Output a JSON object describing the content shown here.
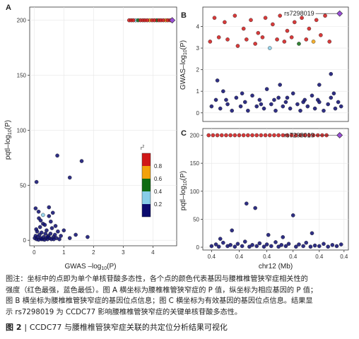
{
  "chart_data": [
    {
      "type": "scatter",
      "panel": "A",
      "xlabel": "GWAS–log10(P)",
      "ylabel": "pqtl–log10(P)",
      "x_ticks": [
        0,
        1,
        2,
        3,
        4
      ],
      "y_ticks": [
        0,
        50,
        100,
        150,
        200
      ],
      "xlim": [
        -0.15,
        4.8
      ],
      "ylim": [
        -5,
        212
      ],
      "legend": {
        "title": "r2",
        "ticks": [
          "0.8",
          "0.6",
          "0.4",
          "0.2"
        ],
        "colors": [
          "#0b0b6e",
          "#87cde8",
          "#0f6b12",
          "#f2a20c",
          "#d01818"
        ]
      },
      "points": [
        {
          "x": 0.02,
          "y": 2,
          "c": 0
        },
        {
          "x": 0.05,
          "y": 4,
          "c": 0
        },
        {
          "x": 0.08,
          "y": 1,
          "c": 0
        },
        {
          "x": 0.1,
          "y": 8,
          "c": 0
        },
        {
          "x": 0.12,
          "y": 3,
          "c": 0
        },
        {
          "x": 0.15,
          "y": 0.5,
          "c": 0
        },
        {
          "x": 0.18,
          "y": 5,
          "c": 0
        },
        {
          "x": 0.2,
          "y": 12,
          "c": 0
        },
        {
          "x": 0.22,
          "y": 2,
          "c": 0
        },
        {
          "x": 0.25,
          "y": 7,
          "c": 0
        },
        {
          "x": 0.28,
          "y": 1,
          "c": 0
        },
        {
          "x": 0.3,
          "y": 15,
          "c": 0
        },
        {
          "x": 0.32,
          "y": 3,
          "c": 0
        },
        {
          "x": 0.35,
          "y": 0.5,
          "c": 0
        },
        {
          "x": 0.38,
          "y": 6,
          "c": 0
        },
        {
          "x": 0.4,
          "y": 2,
          "c": 0
        },
        {
          "x": 0.42,
          "y": 9,
          "c": 0
        },
        {
          "x": 0.45,
          "y": 1,
          "c": 0
        },
        {
          "x": 0.48,
          "y": 4,
          "c": 0
        },
        {
          "x": 0.5,
          "y": 22,
          "c": 0
        },
        {
          "x": 0.52,
          "y": 2,
          "c": 0
        },
        {
          "x": 0.55,
          "y": 6,
          "c": 0
        },
        {
          "x": 0.58,
          "y": 1,
          "c": 0
        },
        {
          "x": 0.6,
          "y": 11,
          "c": 0
        },
        {
          "x": 0.65,
          "y": 3,
          "c": 0
        },
        {
          "x": 0.7,
          "y": 5,
          "c": 0
        },
        {
          "x": 0.75,
          "y": 2,
          "c": 0
        },
        {
          "x": 0.8,
          "y": 8,
          "c": 0
        },
        {
          "x": 0.85,
          "y": 1,
          "c": 0
        },
        {
          "x": 0.9,
          "y": 4,
          "c": 0
        },
        {
          "x": 1.0,
          "y": 9,
          "c": 0
        },
        {
          "x": 1.2,
          "y": 2,
          "c": 0
        },
        {
          "x": 1.4,
          "y": 5,
          "c": 0
        },
        {
          "x": 1.8,
          "y": 3,
          "c": 0
        },
        {
          "x": 0.07,
          "y": 10,
          "c": 0
        },
        {
          "x": 0.16,
          "y": 20,
          "c": 0
        },
        {
          "x": 0.24,
          "y": 1,
          "c": 0
        },
        {
          "x": 0.36,
          "y": 14,
          "c": 0
        },
        {
          "x": 0.46,
          "y": 3,
          "c": 0
        },
        {
          "x": 0.56,
          "y": 17,
          "c": 0
        },
        {
          "x": 0.66,
          "y": 1,
          "c": 0
        },
        {
          "x": 0.72,
          "y": 13,
          "c": 0
        },
        {
          "x": 0.05,
          "y": 29,
          "c": 0
        },
        {
          "x": 0.08,
          "y": 53,
          "c": 0
        },
        {
          "x": 0.15,
          "y": 26,
          "c": 0
        },
        {
          "x": 0.22,
          "y": 18,
          "c": 0
        },
        {
          "x": 0.5,
          "y": 30,
          "c": 0
        },
        {
          "x": 0.63,
          "y": 25,
          "c": 0
        },
        {
          "x": 0.78,
          "y": 77,
          "c": 0
        },
        {
          "x": 1.2,
          "y": 57,
          "c": 0
        },
        {
          "x": 1.6,
          "y": 72,
          "c": 0
        },
        {
          "x": 0.3,
          "y": 23,
          "c": 1
        },
        {
          "x": 3.2,
          "y": 200,
          "c": 4
        },
        {
          "x": 3.27,
          "y": 200,
          "c": 4
        },
        {
          "x": 3.34,
          "y": 200,
          "c": 4
        },
        {
          "x": 3.42,
          "y": 200,
          "c": 1
        },
        {
          "x": 3.5,
          "y": 200,
          "c": 2
        },
        {
          "x": 3.58,
          "y": 200,
          "c": 4
        },
        {
          "x": 3.66,
          "y": 200,
          "c": 4
        },
        {
          "x": 3.73,
          "y": 200,
          "c": 4
        },
        {
          "x": 3.81,
          "y": 200,
          "c": 4
        },
        {
          "x": 3.89,
          "y": 200,
          "c": 3
        },
        {
          "x": 3.97,
          "y": 200,
          "c": 4
        },
        {
          "x": 4.05,
          "y": 200,
          "c": 4
        },
        {
          "x": 4.13,
          "y": 200,
          "c": 2
        },
        {
          "x": 4.2,
          "y": 200,
          "c": 4
        },
        {
          "x": 4.27,
          "y": 200,
          "c": 4
        },
        {
          "x": 4.35,
          "y": 200,
          "c": 4
        },
        {
          "x": 4.43,
          "y": 200,
          "c": 3
        },
        {
          "x": 4.5,
          "y": 200,
          "c": 4
        },
        {
          "x": 4.58,
          "y": 200,
          "c": 4
        }
      ],
      "lead": {
        "x": 4.65,
        "y": 200
      }
    },
    {
      "type": "scatter",
      "panel": "B",
      "ylabel": "GWAS–log10(P)",
      "y_ticks": [
        0,
        1,
        2,
        3,
        4
      ],
      "xlim": [
        0,
        1
      ],
      "ylim": [
        -0.4,
        4.9
      ],
      "lead_label": "rs7298019",
      "lead": {
        "x": 0.94,
        "y": 4.6
      },
      "points": [
        {
          "x": 0.08,
          "y": 4.4,
          "c": 4
        },
        {
          "x": 0.15,
          "y": 4.2,
          "c": 4
        },
        {
          "x": 0.22,
          "y": 4.5,
          "c": 4
        },
        {
          "x": 0.28,
          "y": 3.9,
          "c": 4
        },
        {
          "x": 0.33,
          "y": 4.3,
          "c": 4
        },
        {
          "x": 0.38,
          "y": 3.7,
          "c": 4
        },
        {
          "x": 0.43,
          "y": 4.4,
          "c": 4
        },
        {
          "x": 0.48,
          "y": 4.1,
          "c": 4
        },
        {
          "x": 0.53,
          "y": 4.5,
          "c": 4
        },
        {
          "x": 0.58,
          "y": 3.8,
          "c": 4
        },
        {
          "x": 0.63,
          "y": 4.2,
          "c": 4
        },
        {
          "x": 0.68,
          "y": 4.4,
          "c": 4
        },
        {
          "x": 0.73,
          "y": 3.9,
          "c": 4
        },
        {
          "x": 0.78,
          "y": 4.3,
          "c": 4
        },
        {
          "x": 0.84,
          "y": 4.5,
          "c": 4
        },
        {
          "x": 0.05,
          "y": 3.3,
          "c": 4
        },
        {
          "x": 0.11,
          "y": 3.5,
          "c": 4
        },
        {
          "x": 0.17,
          "y": 3.4,
          "c": 4
        },
        {
          "x": 0.24,
          "y": 3.1,
          "c": 4
        },
        {
          "x": 0.3,
          "y": 3.4,
          "c": 4
        },
        {
          "x": 0.36,
          "y": 3.2,
          "c": 4
        },
        {
          "x": 0.41,
          "y": 3.5,
          "c": 4
        },
        {
          "x": 0.46,
          "y": 3.0,
          "c": 1
        },
        {
          "x": 0.51,
          "y": 3.4,
          "c": 4
        },
        {
          "x": 0.56,
          "y": 3.3,
          "c": 4
        },
        {
          "x": 0.61,
          "y": 3.5,
          "c": 4
        },
        {
          "x": 0.66,
          "y": 3.2,
          "c": 2
        },
        {
          "x": 0.71,
          "y": 3.4,
          "c": 4
        },
        {
          "x": 0.76,
          "y": 3.3,
          "c": 3
        },
        {
          "x": 0.81,
          "y": 3.6,
          "c": 4
        },
        {
          "x": 0.87,
          "y": 3.3,
          "c": 4
        },
        {
          "x": 0.06,
          "y": 0.3,
          "c": 0
        },
        {
          "x": 0.09,
          "y": 0.6,
          "c": 0
        },
        {
          "x": 0.12,
          "y": 0.2,
          "c": 0
        },
        {
          "x": 0.14,
          "y": 1.0,
          "c": 0
        },
        {
          "x": 0.17,
          "y": 0.4,
          "c": 0
        },
        {
          "x": 0.2,
          "y": 0.1,
          "c": 0
        },
        {
          "x": 0.23,
          "y": 0.7,
          "c": 0
        },
        {
          "x": 0.26,
          "y": 0.3,
          "c": 0
        },
        {
          "x": 0.29,
          "y": 0.5,
          "c": 0
        },
        {
          "x": 0.31,
          "y": 0.1,
          "c": 0
        },
        {
          "x": 0.34,
          "y": 0.8,
          "c": 0
        },
        {
          "x": 0.37,
          "y": 0.3,
          "c": 0
        },
        {
          "x": 0.39,
          "y": 0.6,
          "c": 0
        },
        {
          "x": 0.42,
          "y": 0.2,
          "c": 0
        },
        {
          "x": 0.44,
          "y": 1.1,
          "c": 0
        },
        {
          "x": 0.47,
          "y": 0.4,
          "c": 0
        },
        {
          "x": 0.5,
          "y": 0.1,
          "c": 0
        },
        {
          "x": 0.52,
          "y": 0.7,
          "c": 0
        },
        {
          "x": 0.55,
          "y": 0.3,
          "c": 0
        },
        {
          "x": 0.57,
          "y": 0.5,
          "c": 0
        },
        {
          "x": 0.6,
          "y": 0.2,
          "c": 0
        },
        {
          "x": 0.62,
          "y": 0.9,
          "c": 0
        },
        {
          "x": 0.65,
          "y": 0.4,
          "c": 0
        },
        {
          "x": 0.67,
          "y": 0.1,
          "c": 0
        },
        {
          "x": 0.7,
          "y": 0.6,
          "c": 0
        },
        {
          "x": 0.72,
          "y": 0.3,
          "c": 0
        },
        {
          "x": 0.75,
          "y": 0.8,
          "c": 0
        },
        {
          "x": 0.77,
          "y": 0.2,
          "c": 0
        },
        {
          "x": 0.8,
          "y": 0.5,
          "c": 0
        },
        {
          "x": 0.83,
          "y": 0.1,
          "c": 0
        },
        {
          "x": 0.86,
          "y": 0.4,
          "c": 0
        },
        {
          "x": 0.88,
          "y": 0.7,
          "c": 0
        },
        {
          "x": 0.91,
          "y": 0.2,
          "c": 0
        },
        {
          "x": 0.93,
          "y": 0.5,
          "c": 0
        },
        {
          "x": 0.95,
          "y": 0.3,
          "c": 0
        },
        {
          "x": 0.16,
          "y": 0.6,
          "c": 0
        },
        {
          "x": 0.27,
          "y": 0.9,
          "c": 0
        },
        {
          "x": 0.4,
          "y": 0.4,
          "c": 0
        },
        {
          "x": 0.49,
          "y": 0.6,
          "c": 0
        },
        {
          "x": 0.58,
          "y": 0.7,
          "c": 0
        },
        {
          "x": 0.69,
          "y": 0.5,
          "c": 0
        },
        {
          "x": 0.79,
          "y": 0.6,
          "c": 0
        },
        {
          "x": 0.9,
          "y": 0.9,
          "c": 0
        },
        {
          "x": 0.1,
          "y": 1.5,
          "c": 0
        },
        {
          "x": 0.53,
          "y": 1.3,
          "c": 0
        },
        {
          "x": 0.88,
          "y": 1.8,
          "c": 0
        },
        {
          "x": 0.8,
          "y": 1.3,
          "c": 0
        }
      ]
    },
    {
      "type": "scatter",
      "panel": "C",
      "xlabel": "chr12 (Mb)",
      "ylabel": "pqtl–log10(P)",
      "x_ticks": [
        "0.4",
        "0.4",
        "0.4",
        "0.4",
        "0.4",
        "0.4"
      ],
      "y_ticks": [
        0,
        50,
        100,
        150,
        200
      ],
      "xlim": [
        0,
        1
      ],
      "ylim": [
        -5,
        212
      ],
      "lead_label": "rs7298019",
      "lead": {
        "x": 0.94,
        "y": 200
      },
      "points": [
        {
          "x": 0.04,
          "y": 200,
          "c": 4
        },
        {
          "x": 0.07,
          "y": 200,
          "c": 4
        },
        {
          "x": 0.1,
          "y": 200,
          "c": 4
        },
        {
          "x": 0.13,
          "y": 200,
          "c": 4
        },
        {
          "x": 0.16,
          "y": 200,
          "c": 4
        },
        {
          "x": 0.19,
          "y": 200,
          "c": 4
        },
        {
          "x": 0.22,
          "y": 200,
          "c": 4
        },
        {
          "x": 0.25,
          "y": 200,
          "c": 4
        },
        {
          "x": 0.28,
          "y": 200,
          "c": 4
        },
        {
          "x": 0.31,
          "y": 200,
          "c": 4
        },
        {
          "x": 0.34,
          "y": 200,
          "c": 4
        },
        {
          "x": 0.37,
          "y": 200,
          "c": 4
        },
        {
          "x": 0.4,
          "y": 200,
          "c": 4
        },
        {
          "x": 0.43,
          "y": 200,
          "c": 4
        },
        {
          "x": 0.46,
          "y": 200,
          "c": 4
        },
        {
          "x": 0.49,
          "y": 200,
          "c": 4
        },
        {
          "x": 0.52,
          "y": 200,
          "c": 4
        },
        {
          "x": 0.55,
          "y": 200,
          "c": 4
        },
        {
          "x": 0.58,
          "y": 200,
          "c": 4
        },
        {
          "x": 0.61,
          "y": 200,
          "c": 4
        },
        {
          "x": 0.64,
          "y": 200,
          "c": 4
        },
        {
          "x": 0.67,
          "y": 200,
          "c": 4
        },
        {
          "x": 0.7,
          "y": 200,
          "c": 4
        },
        {
          "x": 0.73,
          "y": 200,
          "c": 4
        },
        {
          "x": 0.76,
          "y": 200,
          "c": 4
        },
        {
          "x": 0.79,
          "y": 200,
          "c": 4
        },
        {
          "x": 0.82,
          "y": 200,
          "c": 4
        },
        {
          "x": 0.85,
          "y": 200,
          "c": 4
        },
        {
          "x": 0.3,
          "y": 78,
          "c": 0
        },
        {
          "x": 0.36,
          "y": 70,
          "c": 0
        },
        {
          "x": 0.62,
          "y": 57,
          "c": 0
        },
        {
          "x": 0.2,
          "y": 30,
          "c": 0
        },
        {
          "x": 0.45,
          "y": 22,
          "c": 0
        },
        {
          "x": 0.55,
          "y": 18,
          "c": 0
        },
        {
          "x": 0.75,
          "y": 25,
          "c": 0
        },
        {
          "x": 0.12,
          "y": 15,
          "c": 0
        },
        {
          "x": 0.06,
          "y": 2,
          "c": 0
        },
        {
          "x": 0.09,
          "y": 5,
          "c": 0
        },
        {
          "x": 0.11,
          "y": 1,
          "c": 0
        },
        {
          "x": 0.14,
          "y": 8,
          "c": 0
        },
        {
          "x": 0.17,
          "y": 2,
          "c": 0
        },
        {
          "x": 0.19,
          "y": 4,
          "c": 0
        },
        {
          "x": 0.22,
          "y": 1,
          "c": 0
        },
        {
          "x": 0.24,
          "y": 6,
          "c": 0
        },
        {
          "x": 0.27,
          "y": 2,
          "c": 0
        },
        {
          "x": 0.29,
          "y": 10,
          "c": 0
        },
        {
          "x": 0.32,
          "y": 1,
          "c": 0
        },
        {
          "x": 0.34,
          "y": 4,
          "c": 0
        },
        {
          "x": 0.37,
          "y": 2,
          "c": 0
        },
        {
          "x": 0.39,
          "y": 7,
          "c": 0
        },
        {
          "x": 0.42,
          "y": 1,
          "c": 0
        },
        {
          "x": 0.44,
          "y": 5,
          "c": 0
        },
        {
          "x": 0.47,
          "y": 2,
          "c": 0
        },
        {
          "x": 0.5,
          "y": 9,
          "c": 0
        },
        {
          "x": 0.52,
          "y": 1,
          "c": 0
        },
        {
          "x": 0.54,
          "y": 4,
          "c": 0
        },
        {
          "x": 0.57,
          "y": 2,
          "c": 0
        },
        {
          "x": 0.59,
          "y": 6,
          "c": 0
        },
        {
          "x": 0.64,
          "y": 1,
          "c": 0
        },
        {
          "x": 0.66,
          "y": 5,
          "c": 0
        },
        {
          "x": 0.69,
          "y": 2,
          "c": 0
        },
        {
          "x": 0.71,
          "y": 8,
          "c": 0
        },
        {
          "x": 0.74,
          "y": 1,
          "c": 0
        },
        {
          "x": 0.77,
          "y": 3,
          "c": 0
        },
        {
          "x": 0.8,
          "y": 2,
          "c": 0
        },
        {
          "x": 0.83,
          "y": 6,
          "c": 0
        },
        {
          "x": 0.86,
          "y": 1,
          "c": 0
        },
        {
          "x": 0.89,
          "y": 4,
          "c": 0
        },
        {
          "x": 0.92,
          "y": 2,
          "c": 0
        },
        {
          "x": 0.95,
          "y": 5,
          "c": 0
        }
      ]
    }
  ],
  "caption": {
    "lines": [
      "图注：坐标中的点即为单个单核苷酸多态性，各个点的颜色代表基因与腰椎椎管狭窄症相关性的",
      "强度（红色最强，蓝色最低）。图 A 横坐标为腰椎椎管狭窄症的 P 值，纵坐标为相应基因的 P 值；",
      "图 B 横坐标为腰椎椎管狭窄症的基因位点信息；图 C 横坐标为有效基因的基因位点信息。结果显",
      "示 rs7298019 为 CCDC77 影响腰椎椎管狭窄症的关键单核苷酸多态性。"
    ],
    "title_label": "图 2",
    "title_sep": "|",
    "title_text": "CCDC77 与腰椎椎管狭窄症关联的共定位分析结果可视化"
  }
}
